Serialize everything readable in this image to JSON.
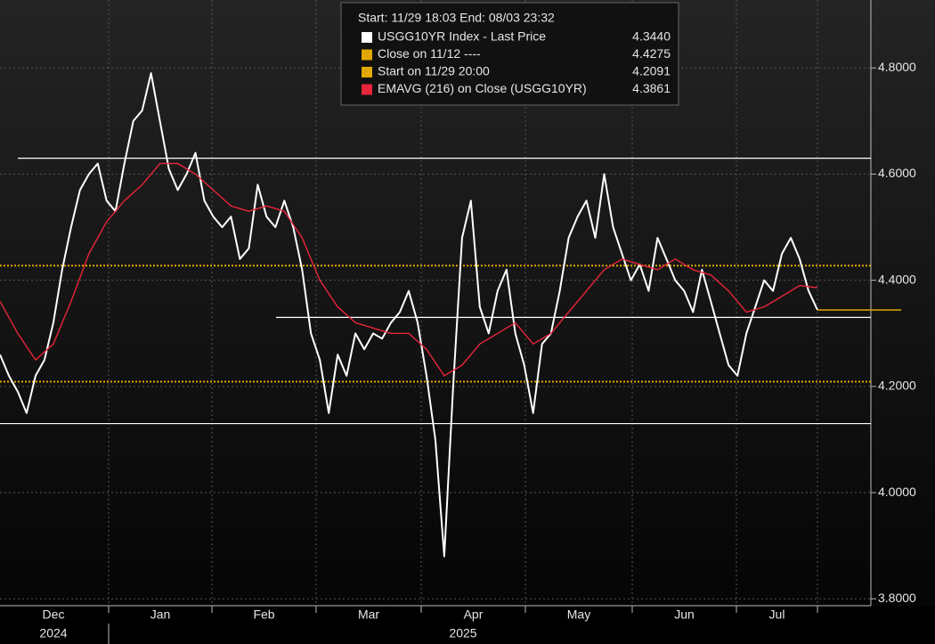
{
  "chart_data": {
    "type": "line",
    "header": "Start: 11/29 18:03 End: 08/03 23:32",
    "months": [
      "Dec",
      "Jan",
      "Feb",
      "Mar",
      "Apr",
      "May",
      "Jun",
      "Jul"
    ],
    "years": [
      "2024",
      "2025"
    ],
    "series": [
      {
        "name": "USGG10YR Index - Last Price",
        "color": "#ffffff",
        "values": [
          4.26,
          4.22,
          4.19,
          4.15,
          4.22,
          4.25,
          4.32,
          4.42,
          4.5,
          4.57,
          4.6,
          4.62,
          4.55,
          4.53,
          4.62,
          4.7,
          4.72,
          4.79,
          4.7,
          4.61,
          4.57,
          4.6,
          4.64,
          4.55,
          4.52,
          4.5,
          4.52,
          4.44,
          4.46,
          4.58,
          4.52,
          4.5,
          4.55,
          4.5,
          4.42,
          4.3,
          4.25,
          4.15,
          4.26,
          4.22,
          4.3,
          4.27,
          4.3,
          4.29,
          4.32,
          4.34,
          4.38,
          4.32,
          4.22,
          4.1,
          3.88,
          4.2,
          4.48,
          4.55,
          4.35,
          4.3,
          4.38,
          4.42,
          4.3,
          4.24,
          4.15,
          4.28,
          4.3,
          4.38,
          4.48,
          4.52,
          4.55,
          4.48,
          4.6,
          4.5,
          4.45,
          4.4,
          4.43,
          4.38,
          4.48,
          4.44,
          4.4,
          4.38,
          4.34,
          4.42,
          4.36,
          4.3,
          4.24,
          4.22,
          4.3,
          4.35,
          4.4,
          4.38,
          4.45,
          4.48,
          4.44,
          4.38,
          4.344
        ]
      },
      {
        "name": "EMAVG (216)  on Close (USGG10YR)",
        "color": "#e8253a",
        "values": [
          4.36,
          4.3,
          4.25,
          4.28,
          4.36,
          4.45,
          4.51,
          4.55,
          4.58,
          4.62,
          4.62,
          4.6,
          4.57,
          4.54,
          4.53,
          4.54,
          4.53,
          4.48,
          4.4,
          4.35,
          4.32,
          4.31,
          4.3,
          4.3,
          4.27,
          4.22,
          4.24,
          4.28,
          4.3,
          4.32,
          4.28,
          4.3,
          4.34,
          4.38,
          4.42,
          4.44,
          4.43,
          4.42,
          4.44,
          4.42,
          4.41,
          4.38,
          4.34,
          4.35,
          4.37,
          4.39,
          4.3861
        ]
      }
    ],
    "legend": [
      {
        "name": "USGG10YR Index - Last Price",
        "color": "#ffffff",
        "value": 4.344,
        "value_label": "4.3440"
      },
      {
        "name": "Close on 11/12 ----",
        "color": "#e0a800",
        "value": 4.4275,
        "value_label": "4.4275"
      },
      {
        "name": "Start on 11/29 20:00",
        "color": "#e0a800",
        "value": 4.2091,
        "value_label": "4.2091"
      },
      {
        "name": "EMAVG (216)  on Close (USGG10YR)",
        "color": "#e8253a",
        "value": 4.3861,
        "value_label": "4.3861"
      }
    ],
    "trend_lines": [
      4.63,
      4.33,
      4.13
    ],
    "ylim": [
      3.787,
      4.928
    ],
    "yticks": [
      {
        "value": 3.8,
        "label": "3.8000"
      },
      {
        "value": 4.0,
        "label": "4.0000"
      },
      {
        "value": 4.2,
        "label": "4.2000"
      },
      {
        "value": 4.4,
        "label": "4.4000"
      },
      {
        "value": 4.6,
        "label": "4.6000"
      },
      {
        "value": 4.8,
        "label": "4.8000"
      }
    ],
    "grid": true
  }
}
